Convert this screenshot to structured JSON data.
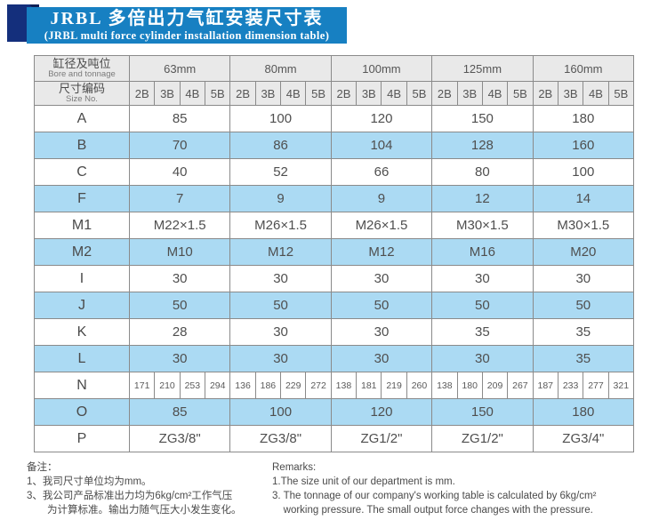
{
  "title": {
    "zh": "JRBL 多倍出力气缸安装尺寸表",
    "en": "(JRBL multi force cylinder installation dimension table)"
  },
  "table": {
    "corner": {
      "row1_zh": "缸径及吨位",
      "row1_en": "Bore and tonnage",
      "row2_zh": "尺寸编码",
      "row2_en": "Size No."
    },
    "bores": [
      "63mm",
      "80mm",
      "100mm",
      "125mm",
      "160mm"
    ],
    "size_nos": [
      "2B",
      "3B",
      "4B",
      "5B"
    ],
    "rows": [
      {
        "label": "A",
        "values": [
          "85",
          "100",
          "120",
          "150",
          "180"
        ]
      },
      {
        "label": "B",
        "values": [
          "70",
          "86",
          "104",
          "128",
          "160"
        ]
      },
      {
        "label": "C",
        "values": [
          "40",
          "52",
          "66",
          "80",
          "100"
        ]
      },
      {
        "label": "F",
        "values": [
          "7",
          "9",
          "9",
          "12",
          "14"
        ]
      },
      {
        "label": "M1",
        "values": [
          "M22×1.5",
          "M26×1.5",
          "M26×1.5",
          "M30×1.5",
          "M30×1.5"
        ]
      },
      {
        "label": "M2",
        "values": [
          "M10",
          "M12",
          "M12",
          "M16",
          "M20"
        ]
      },
      {
        "label": "I",
        "values": [
          "30",
          "30",
          "30",
          "30",
          "30"
        ]
      },
      {
        "label": "J",
        "values": [
          "50",
          "50",
          "50",
          "50",
          "50"
        ]
      },
      {
        "label": "K",
        "values": [
          "28",
          "30",
          "30",
          "35",
          "35"
        ]
      },
      {
        "label": "L",
        "values": [
          "30",
          "30",
          "30",
          "30",
          "35"
        ]
      },
      {
        "label": "N",
        "values": [
          "171",
          "210",
          "253",
          "294",
          "136",
          "186",
          "229",
          "272",
          "138",
          "181",
          "219",
          "260",
          "138",
          "180",
          "209",
          "267",
          "187",
          "233",
          "277",
          "321"
        ]
      },
      {
        "label": "O",
        "values": [
          "85",
          "100",
          "120",
          "150",
          "180"
        ]
      },
      {
        "label": "P",
        "values": [
          "ZG3/8\"",
          "ZG3/8\"",
          "ZG1/2\"",
          "ZG1/2\"",
          "ZG3/4\""
        ]
      }
    ]
  },
  "notes": {
    "zh": {
      "heading": "备注：",
      "lines": [
        {
          "text": "1、我司尺寸单位均为mm。",
          "indent": false
        },
        {
          "text": "3、我公司产品标准出力均为6kg/cm²工作气压",
          "indent": false
        },
        {
          "text": "为计算标准。输出力随气压大小发生变化。",
          "indent": true
        }
      ]
    },
    "en": {
      "heading": "Remarks:",
      "lines": [
        {
          "text": "1.The size unit of our department is mm.",
          "indent": false
        },
        {
          "text": "3. The tonnage of our company's working table is calculated by 6kg/cm²",
          "indent": false
        },
        {
          "text": "working pressure. The small output force changes with the pressure.",
          "indent": true
        }
      ]
    }
  },
  "colors": {
    "banner_blue": "#1780c2",
    "accent_navy": "#142f7c",
    "stripe_blue": "#abdaf3",
    "header_gray": "#e9e9e9",
    "border_gray": "#8a8a8a"
  }
}
